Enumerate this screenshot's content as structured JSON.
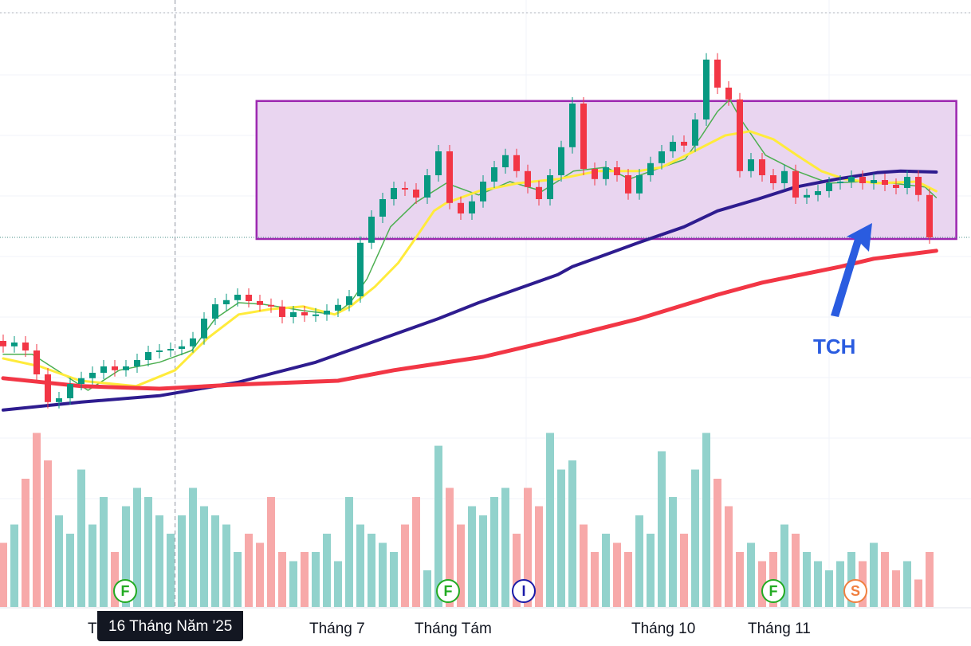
{
  "chart_data": {
    "type": "candlestick",
    "symbol_label": "TCH",
    "price_units": "price (no axis shown)",
    "ylim": [
      14,
      28
    ],
    "closes": [
      17.13,
      17.25,
      17.0,
      16.25,
      15.38,
      15.5,
      15.95,
      16.13,
      16.3,
      16.5,
      16.38,
      16.5,
      16.7,
      16.95,
      17.0,
      17.05,
      17.13,
      17.38,
      18.0,
      18.45,
      18.58,
      18.75,
      18.55,
      18.43,
      18.38,
      18.05,
      18.2,
      18.1,
      18.13,
      18.25,
      18.43,
      18.7,
      20.38,
      21.2,
      21.75,
      22.1,
      22.05,
      21.8,
      22.5,
      23.25,
      21.63,
      21.3,
      21.68,
      22.3,
      22.75,
      23.13,
      22.63,
      22.13,
      21.75,
      22.5,
      23.38,
      24.75,
      22.7,
      22.38,
      22.75,
      22.5,
      21.93,
      22.5,
      22.88,
      23.25,
      23.55,
      23.43,
      24.25,
      26.13,
      25.25,
      24.88,
      22.63,
      23.0,
      22.5,
      22.25,
      22.63,
      21.8,
      21.88,
      22.0,
      22.25,
      22.3,
      22.45,
      22.25,
      22.35,
      22.2,
      22.1,
      22.45,
      21.88,
      20.55
    ],
    "first_open": 17.3,
    "wick": 0.2,
    "volumes": [
      35,
      45,
      70,
      95,
      80,
      50,
      40,
      75,
      45,
      60,
      30,
      55,
      65,
      60,
      50,
      40,
      50,
      65,
      55,
      50,
      45,
      30,
      40,
      35,
      60,
      30,
      25,
      30,
      30,
      40,
      25,
      60,
      45,
      40,
      35,
      30,
      45,
      60,
      20,
      88,
      65,
      45,
      55,
      50,
      60,
      65,
      40,
      65,
      55,
      95,
      75,
      80,
      45,
      30,
      40,
      35,
      30,
      50,
      40,
      85,
      60,
      40,
      75,
      95,
      70,
      55,
      30,
      35,
      25,
      30,
      45,
      40,
      30,
      25,
      20,
      25,
      30,
      25,
      35,
      30,
      20,
      25,
      15,
      30
    ],
    "moving_averages": [
      {
        "name": "MA-fast",
        "color": "#4caf50",
        "points": [
          [
            0,
            16.88
          ],
          [
            2.6,
            16.88
          ],
          [
            5.4,
            16.25
          ],
          [
            7.6,
            15.75
          ],
          [
            10.4,
            16.38
          ],
          [
            14,
            16.63
          ],
          [
            16.9,
            17.0
          ],
          [
            19,
            18.0
          ],
          [
            21.1,
            18.5
          ],
          [
            23.3,
            18.45
          ],
          [
            26.9,
            18.25
          ],
          [
            29.7,
            18.13
          ],
          [
            31.1,
            18.5
          ],
          [
            32.6,
            19.25
          ],
          [
            34.7,
            20.88
          ],
          [
            36.9,
            21.63
          ],
          [
            39.7,
            22.25
          ],
          [
            42.6,
            21.88
          ],
          [
            45.4,
            22.3
          ],
          [
            48.3,
            22.0
          ],
          [
            51.1,
            22.63
          ],
          [
            54,
            22.75
          ],
          [
            56.1,
            22.38
          ],
          [
            59,
            22.75
          ],
          [
            61.1,
            23.0
          ],
          [
            62.6,
            23.75
          ],
          [
            64,
            24.5
          ],
          [
            65.1,
            24.88
          ],
          [
            66.1,
            24.25
          ],
          [
            68.3,
            23.13
          ],
          [
            71.1,
            22.63
          ],
          [
            74,
            22.25
          ],
          [
            76.9,
            22.3
          ],
          [
            79.7,
            22.25
          ],
          [
            82.6,
            22.13
          ],
          [
            83.6,
            21.8
          ]
        ]
      },
      {
        "name": "MA-20",
        "color": "#ffeb3b",
        "points": [
          [
            0,
            16.75
          ],
          [
            3.3,
            16.5
          ],
          [
            6.9,
            16.05
          ],
          [
            11.9,
            15.88
          ],
          [
            15.4,
            16.38
          ],
          [
            18.3,
            17.38
          ],
          [
            21.1,
            18.13
          ],
          [
            24,
            18.3
          ],
          [
            26.9,
            18.38
          ],
          [
            29.7,
            18.13
          ],
          [
            31.1,
            18.38
          ],
          [
            33.3,
            19.0
          ],
          [
            35.4,
            19.75
          ],
          [
            36.9,
            20.5
          ],
          [
            38.6,
            21.38
          ],
          [
            39.7,
            21.63
          ],
          [
            42.6,
            22.0
          ],
          [
            46.1,
            22.25
          ],
          [
            49.7,
            22.38
          ],
          [
            53.3,
            22.63
          ],
          [
            56.9,
            22.63
          ],
          [
            59,
            22.75
          ],
          [
            61.9,
            23.25
          ],
          [
            64.7,
            23.75
          ],
          [
            66.9,
            23.88
          ],
          [
            69,
            23.63
          ],
          [
            71.1,
            23.13
          ],
          [
            73.3,
            22.63
          ],
          [
            75.4,
            22.38
          ],
          [
            78.3,
            22.25
          ],
          [
            81.9,
            22.3
          ],
          [
            83.6,
            22.0
          ]
        ]
      },
      {
        "name": "MA-100",
        "color": "#2e1c8f",
        "points": [
          [
            0,
            15.13
          ],
          [
            7,
            15.38
          ],
          [
            14,
            15.58
          ],
          [
            21,
            16.0
          ],
          [
            28,
            16.63
          ],
          [
            35,
            17.5
          ],
          [
            39,
            18.0
          ],
          [
            42.6,
            18.5
          ],
          [
            49.7,
            19.38
          ],
          [
            51,
            19.63
          ],
          [
            56.9,
            20.38
          ],
          [
            61,
            20.88
          ],
          [
            64,
            21.38
          ],
          [
            67.6,
            21.75
          ],
          [
            71,
            22.13
          ],
          [
            74.7,
            22.38
          ],
          [
            78.3,
            22.58
          ],
          [
            80.4,
            22.63
          ],
          [
            83.6,
            22.6
          ]
        ]
      },
      {
        "name": "MA-200",
        "color": "#f23645",
        "points": [
          [
            0,
            16.13
          ],
          [
            7,
            15.88
          ],
          [
            14,
            15.8
          ],
          [
            21,
            15.93
          ],
          [
            30,
            16.05
          ],
          [
            35,
            16.38
          ],
          [
            43,
            16.8
          ],
          [
            50,
            17.38
          ],
          [
            57,
            18.0
          ],
          [
            64,
            18.75
          ],
          [
            68,
            19.13
          ],
          [
            75,
            19.63
          ],
          [
            78,
            19.88
          ],
          [
            83.6,
            20.13
          ]
        ]
      }
    ],
    "range_box": {
      "low": 20.5,
      "high": 24.83,
      "from_bar": 22.7,
      "to_bar": 85.4,
      "fill": "#e9d5f0",
      "stroke": "#9c27b0"
    },
    "price_line": 20.55,
    "crosshair_bar": 15.4,
    "colors": {
      "up": "#089981",
      "down": "#f23645",
      "vol_up": "#92d2cc",
      "vol_down": "#f7a9a9"
    },
    "x_ticks": [
      "T",
      "Tháng 7",
      "Tháng Tám",
      "Tháng 10",
      "Tháng 11"
    ],
    "crosshair_label": "16 Tháng Năm '25",
    "events": [
      {
        "label": "F",
        "color": "#22ab22"
      },
      {
        "label": "F",
        "color": "#22ab22"
      },
      {
        "label": "I",
        "color": "#1a1aa8"
      },
      {
        "label": "F",
        "color": "#22ab22"
      },
      {
        "label": "S",
        "color": "#f08040"
      }
    ],
    "annotation": {
      "text": "TCH",
      "color": "#2a5ce0"
    }
  }
}
